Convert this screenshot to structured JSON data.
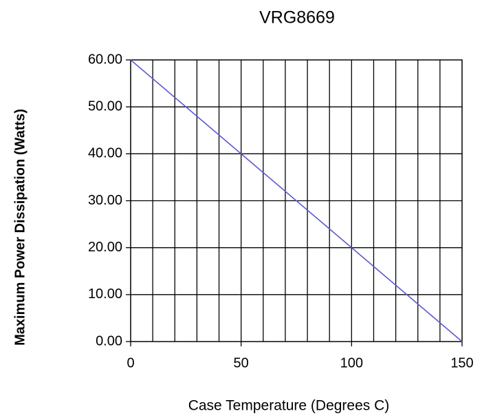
{
  "chart_data": {
    "type": "line",
    "title": "VRG8669",
    "xlabel": "Case Temperature (Degrees C)",
    "ylabel": "Maximum Power Dissipation (Watts)",
    "x": [
      0,
      150
    ],
    "series": [
      {
        "name": null,
        "color": "#5a5ad2",
        "values": [
          60,
          0
        ]
      }
    ],
    "xlim": [
      0,
      150
    ],
    "xticks": [
      0,
      50,
      100,
      150
    ],
    "xgrid": [
      0,
      10,
      20,
      30,
      40,
      50,
      60,
      70,
      80,
      90,
      100,
      110,
      120,
      130,
      140,
      150
    ],
    "ylim": [
      0,
      60
    ],
    "yticks": [
      {
        "value": 0,
        "label": "0.00"
      },
      {
        "value": 10,
        "label": "10.00"
      },
      {
        "value": 20,
        "label": "20.00"
      },
      {
        "value": 30,
        "label": "30.00"
      },
      {
        "value": 40,
        "label": "40.00"
      },
      {
        "value": 50,
        "label": "50.00"
      },
      {
        "value": 60,
        "label": "60.00"
      }
    ],
    "grid": true
  }
}
